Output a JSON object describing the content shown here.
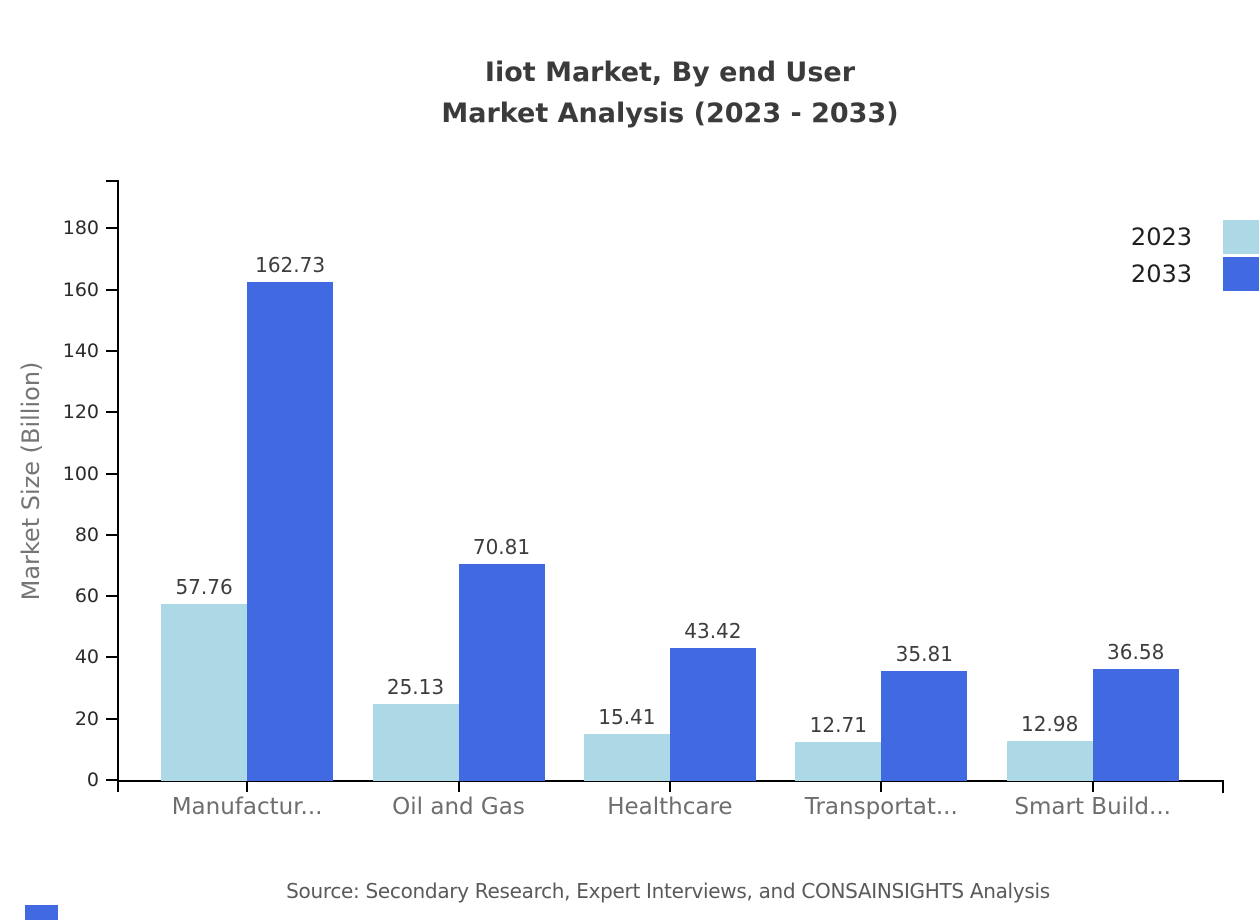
{
  "chart": {
    "title_line1": "Iiot Market, By end User",
    "title_line2": "Market Analysis (2023 - 2033)",
    "source": "Source: Secondary Research, Expert Interviews, and CONSAINSIGHTS Analysis"
  },
  "chart_data": {
    "type": "bar",
    "title": "Iiot Market, By end User Market Analysis (2023 - 2033)",
    "categories": [
      "Manufactur...",
      "Oil and Gas",
      "Healthcare",
      "Transportat...",
      "Smart Build..."
    ],
    "series": [
      {
        "name": "2023",
        "color": "#ADD8E6",
        "values": [
          57.76,
          25.13,
          15.41,
          12.71,
          12.98
        ]
      },
      {
        "name": "2033",
        "color": "#4169E1",
        "values": [
          162.73,
          70.81,
          43.42,
          35.81,
          36.58
        ]
      }
    ],
    "xlabel": "",
    "ylabel": "Market Size (Billion)",
    "ylim": [
      0,
      196
    ],
    "yticks": [
      0,
      20,
      40,
      60,
      80,
      100,
      120,
      140,
      160,
      180
    ],
    "value_labels_decimals": 2,
    "legend_position": "top-right",
    "grid": false,
    "axis_color": "#000000",
    "watermark_color": "#4169E1"
  }
}
